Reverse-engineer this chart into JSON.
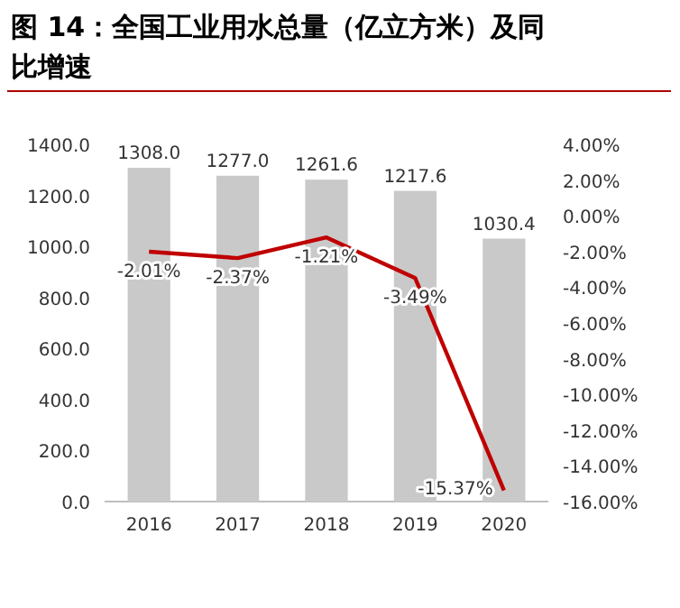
{
  "chart_data": {
    "type": "bar",
    "title": "图 14：全国工业用水总量（亿立方米）及同比增速",
    "categories": [
      "2016",
      "2017",
      "2018",
      "2019",
      "2020"
    ],
    "series": [
      {
        "color": "#c9c9c9",
        "values": [
          1308.0,
          1277.0,
          1261.6,
          1217.6,
          1030.4
        ],
        "value_labels": [
          "1308.0",
          "1277.0",
          "1261.6",
          "1217.6",
          "1030.4"
        ]
      },
      {
        "type": "line",
        "axis": "y2",
        "color": "#c00000",
        "values": [
          -2.01,
          -2.37,
          -1.21,
          -3.49,
          -15.37
        ],
        "value_labels": [
          "-2.01%",
          "-2.37%",
          "-1.21%",
          "-3.49%",
          "-15.37%"
        ],
        "marker": "none"
      }
    ],
    "ylim": [
      0,
      1400
    ],
    "yticks": [
      {
        "value": 0,
        "label": "0.0"
      },
      {
        "value": 200,
        "label": "200.0"
      },
      {
        "value": 400,
        "label": "400.0"
      },
      {
        "value": 600,
        "label": "600.0"
      },
      {
        "value": 800,
        "label": "800.0"
      },
      {
        "value": 1000,
        "label": "1000.0"
      },
      {
        "value": 1200,
        "label": "1200.0"
      },
      {
        "value": 1400,
        "label": "1400.0"
      }
    ],
    "y2lim": [
      -16,
      4
    ],
    "y2ticks": [
      {
        "value": 4,
        "label": "4.00%"
      },
      {
        "value": 2,
        "label": "2.00%"
      },
      {
        "value": 0,
        "label": "0.00%"
      },
      {
        "value": -2,
        "label": "-2.00%"
      },
      {
        "value": -4,
        "label": "-4.00%"
      },
      {
        "value": -6,
        "label": "-6.00%"
      },
      {
        "value": -8,
        "label": "-8.00%"
      },
      {
        "value": -10,
        "label": "-10.00%"
      },
      {
        "value": -12,
        "label": "-12.00%"
      },
      {
        "value": -14,
        "label": "-14.00%"
      },
      {
        "value": -16,
        "label": "-16.00%"
      }
    ]
  }
}
